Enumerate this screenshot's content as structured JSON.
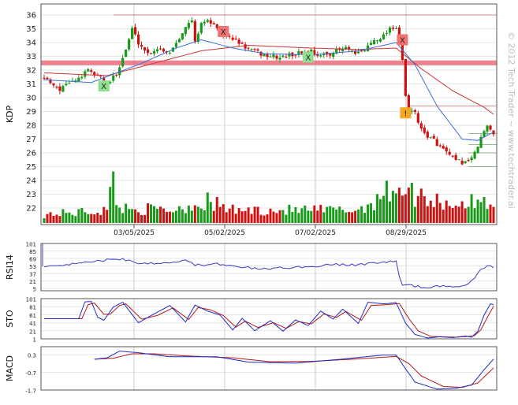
{
  "watermark": "© 2012 Tech Trader ~ www.techtrader.ai",
  "colors": {
    "up": "#1a9a1a",
    "down": "#cc1111",
    "ma_red": "#cc3333",
    "ma_blue": "#3b6fd6",
    "rsi": "#3b3bbf",
    "sto_k": "#1d2bc4",
    "sto_d": "#b21818",
    "support": "#e85a6a"
  },
  "chart_data": [
    {
      "type": "candlestick",
      "ylabel": "KDP",
      "ylim": [
        20.8,
        36.8
      ],
      "yticks": [
        "22",
        "23",
        "24",
        "25",
        "26",
        "27",
        "28",
        "29",
        "30",
        "31",
        "32",
        "33",
        "34",
        "35",
        "36"
      ],
      "x_date_labels": [
        "03/05/2025",
        "05/02/2025",
        "07/02/2025",
        "08/29/2025"
      ],
      "close_path": [
        [
          0,
          31.5
        ],
        [
          5,
          30.6
        ],
        [
          10,
          31.3
        ],
        [
          14,
          31.9
        ],
        [
          18,
          31.5
        ],
        [
          20,
          30.9
        ],
        [
          23,
          31.8
        ],
        [
          26,
          33.5
        ],
        [
          28,
          35.0
        ],
        [
          30,
          34.0
        ],
        [
          33,
          33.2
        ],
        [
          36,
          33.6
        ],
        [
          40,
          33.3
        ],
        [
          44,
          34.8
        ],
        [
          47,
          35.6
        ],
        [
          48,
          34.0
        ],
        [
          50,
          35.5
        ],
        [
          53,
          35.5
        ],
        [
          56,
          34.6
        ],
        [
          60,
          34.3
        ],
        [
          63,
          33.8
        ],
        [
          66,
          33.4
        ],
        [
          70,
          33.1
        ],
        [
          75,
          32.9
        ],
        [
          80,
          33.2
        ],
        [
          85,
          33.4
        ],
        [
          88,
          33.0
        ],
        [
          92,
          33.3
        ],
        [
          96,
          33.6
        ],
        [
          99,
          33.1
        ],
        [
          102,
          33.5
        ],
        [
          105,
          34.2
        ],
        [
          108,
          34.5
        ],
        [
          110,
          35.1
        ],
        [
          112,
          35.1
        ],
        [
          113,
          34.2
        ],
        [
          114,
          32.6
        ],
        [
          115,
          30.1
        ],
        [
          116,
          28.9
        ],
        [
          118,
          29.0
        ],
        [
          120,
          27.6
        ],
        [
          124,
          26.9
        ],
        [
          128,
          26.0
        ],
        [
          131,
          25.4
        ],
        [
          134,
          25.3
        ],
        [
          137,
          25.9
        ],
        [
          139,
          27.1
        ],
        [
          141,
          27.9
        ],
        [
          143,
          27.5
        ]
      ],
      "ma_red_path": [
        [
          0,
          31.8
        ],
        [
          20,
          31.6
        ],
        [
          35,
          32.5
        ],
        [
          50,
          33.4
        ],
        [
          65,
          33.8
        ],
        [
          85,
          33.6
        ],
        [
          100,
          33.5
        ],
        [
          112,
          33.6
        ],
        [
          120,
          32.1
        ],
        [
          130,
          30.5
        ],
        [
          140,
          29.3
        ],
        [
          143,
          28.8
        ]
      ],
      "ma_blue_path": [
        [
          0,
          31.3
        ],
        [
          15,
          31.1
        ],
        [
          30,
          32.4
        ],
        [
          42,
          33.6
        ],
        [
          50,
          34.2
        ],
        [
          60,
          33.6
        ],
        [
          70,
          33.2
        ],
        [
          85,
          33.1
        ],
        [
          100,
          33.4
        ],
        [
          112,
          34.0
        ],
        [
          118,
          32.4
        ],
        [
          125,
          29.4
        ],
        [
          133,
          27.0
        ],
        [
          138,
          26.9
        ],
        [
          143,
          27.5
        ]
      ],
      "support_zone": [
        32.35,
        32.7
      ],
      "resistance_lines": [
        {
          "y": 36.0,
          "x_from": 22
        },
        {
          "y": 29.4,
          "x_from": 116
        },
        {
          "y": 27.4,
          "x_from": 135
        },
        {
          "y": 26.6,
          "x_from": 135
        },
        {
          "y": 26.0,
          "x_from": 135
        },
        {
          "y": 25.0,
          "x_from": 135
        }
      ],
      "signals": [
        {
          "x": 19,
          "y": 30.85,
          "label": "X",
          "color": "#8ee08e"
        },
        {
          "x": 57,
          "y": 34.8,
          "label": "X",
          "color": "#f07272"
        },
        {
          "x": 84,
          "y": 32.95,
          "label": "X",
          "color": "#8ee08e"
        },
        {
          "x": 114,
          "y": 34.2,
          "label": "X",
          "color": "#f07272"
        },
        {
          "x": 115,
          "y": 28.9,
          "label": "!",
          "color": "#f5a623"
        }
      ],
      "volume_path": [
        [
          0,
          0.2
        ],
        [
          20,
          0.3
        ],
        [
          22,
          1.0
        ],
        [
          24,
          0.35
        ],
        [
          40,
          0.3
        ],
        [
          52,
          0.5
        ],
        [
          60,
          0.3
        ],
        [
          100,
          0.3
        ],
        [
          113,
          0.9
        ],
        [
          116,
          0.7
        ],
        [
          130,
          0.45
        ],
        [
          143,
          0.5
        ]
      ]
    },
    {
      "type": "line",
      "ylabel": "RSI14",
      "ylim": [
        0,
        101
      ],
      "yticks": [
        "101",
        "85",
        "69",
        "53",
        "37",
        "21",
        "5"
      ],
      "values_path": [
        [
          0,
          52
        ],
        [
          10,
          58
        ],
        [
          20,
          66
        ],
        [
          25,
          68
        ],
        [
          30,
          59
        ],
        [
          40,
          60
        ],
        [
          45,
          66
        ],
        [
          48,
          55
        ],
        [
          55,
          57
        ],
        [
          60,
          52
        ],
        [
          70,
          46
        ],
        [
          75,
          49
        ],
        [
          85,
          51
        ],
        [
          90,
          56
        ],
        [
          100,
          55
        ],
        [
          105,
          60
        ],
        [
          112,
          63
        ],
        [
          113,
          30
        ],
        [
          114,
          10
        ],
        [
          115,
          13
        ],
        [
          120,
          8
        ],
        [
          128,
          9
        ],
        [
          133,
          11
        ],
        [
          136,
          20
        ],
        [
          139,
          44
        ],
        [
          141,
          55
        ],
        [
          143,
          51
        ]
      ]
    },
    {
      "type": "line",
      "ylabel": "STO",
      "ylim": [
        1,
        101
      ],
      "yticks": [
        "101",
        "81",
        "61",
        "41",
        "21",
        "1"
      ],
      "k_path": [
        [
          0,
          51
        ],
        [
          11,
          51
        ],
        [
          13,
          93
        ],
        [
          15,
          94
        ],
        [
          17,
          55
        ],
        [
          19,
          47
        ],
        [
          22,
          80
        ],
        [
          25,
          92
        ],
        [
          30,
          41
        ],
        [
          35,
          63
        ],
        [
          40,
          84
        ],
        [
          45,
          43
        ],
        [
          48,
          85
        ],
        [
          52,
          70
        ],
        [
          56,
          60
        ],
        [
          60,
          23
        ],
        [
          63,
          52
        ],
        [
          67,
          21
        ],
        [
          72,
          46
        ],
        [
          76,
          20
        ],
        [
          80,
          48
        ],
        [
          84,
          34
        ],
        [
          88,
          70
        ],
        [
          92,
          50
        ],
        [
          95,
          75
        ],
        [
          100,
          39
        ],
        [
          103,
          92
        ],
        [
          108,
          88
        ],
        [
          112,
          91
        ],
        [
          115,
          40
        ],
        [
          118,
          12
        ],
        [
          122,
          3
        ],
        [
          126,
          6
        ],
        [
          130,
          4
        ],
        [
          134,
          8
        ],
        [
          136,
          5
        ],
        [
          138,
          20
        ],
        [
          140,
          60
        ],
        [
          142,
          88
        ],
        [
          143,
          86
        ]
      ],
      "d_path": [
        [
          0,
          51
        ],
        [
          12,
          51
        ],
        [
          14,
          86
        ],
        [
          16,
          90
        ],
        [
          19,
          62
        ],
        [
          21,
          62
        ],
        [
          24,
          84
        ],
        [
          26,
          88
        ],
        [
          31,
          50
        ],
        [
          36,
          59
        ],
        [
          41,
          78
        ],
        [
          46,
          49
        ],
        [
          49,
          79
        ],
        [
          53,
          73
        ],
        [
          57,
          59
        ],
        [
          61,
          30
        ],
        [
          64,
          45
        ],
        [
          68,
          29
        ],
        [
          73,
          41
        ],
        [
          77,
          27
        ],
        [
          81,
          44
        ],
        [
          85,
          38
        ],
        [
          89,
          63
        ],
        [
          93,
          54
        ],
        [
          96,
          69
        ],
        [
          101,
          47
        ],
        [
          104,
          84
        ],
        [
          109,
          86
        ],
        [
          113,
          89
        ],
        [
          116,
          52
        ],
        [
          119,
          21
        ],
        [
          123,
          7
        ],
        [
          127,
          6
        ],
        [
          131,
          5
        ],
        [
          135,
          7
        ],
        [
          137,
          9
        ],
        [
          139,
          24
        ],
        [
          141,
          54
        ],
        [
          143,
          82
        ]
      ]
    },
    {
      "type": "line",
      "ylabel": "MACD",
      "ylim": [
        -1.7,
        0.75
      ],
      "yticks": [
        "0.3",
        "-0.7",
        "-1.7"
      ],
      "macd_path": [
        [
          16,
          0.04
        ],
        [
          20,
          0.12
        ],
        [
          24,
          0.5
        ],
        [
          30,
          0.41
        ],
        [
          40,
          0.18
        ],
        [
          55,
          0.18
        ],
        [
          65,
          -0.12
        ],
        [
          80,
          -0.18
        ],
        [
          95,
          0.05
        ],
        [
          108,
          0.28
        ],
        [
          112,
          0.28
        ],
        [
          115,
          -0.5
        ],
        [
          118,
          -1.25
        ],
        [
          125,
          -1.65
        ],
        [
          131,
          -1.6
        ],
        [
          136,
          -1.42
        ],
        [
          140,
          -0.55
        ],
        [
          143,
          0.05
        ]
      ],
      "signal_path": [
        [
          16,
          0.04
        ],
        [
          22,
          0.1
        ],
        [
          28,
          0.35
        ],
        [
          35,
          0.35
        ],
        [
          45,
          0.23
        ],
        [
          60,
          0.12
        ],
        [
          72,
          -0.1
        ],
        [
          85,
          -0.08
        ],
        [
          100,
          0.06
        ],
        [
          112,
          0.2
        ],
        [
          116,
          -0.2
        ],
        [
          120,
          -0.9
        ],
        [
          127,
          -1.5
        ],
        [
          133,
          -1.55
        ],
        [
          138,
          -1.3
        ],
        [
          143,
          -0.45
        ]
      ]
    }
  ]
}
